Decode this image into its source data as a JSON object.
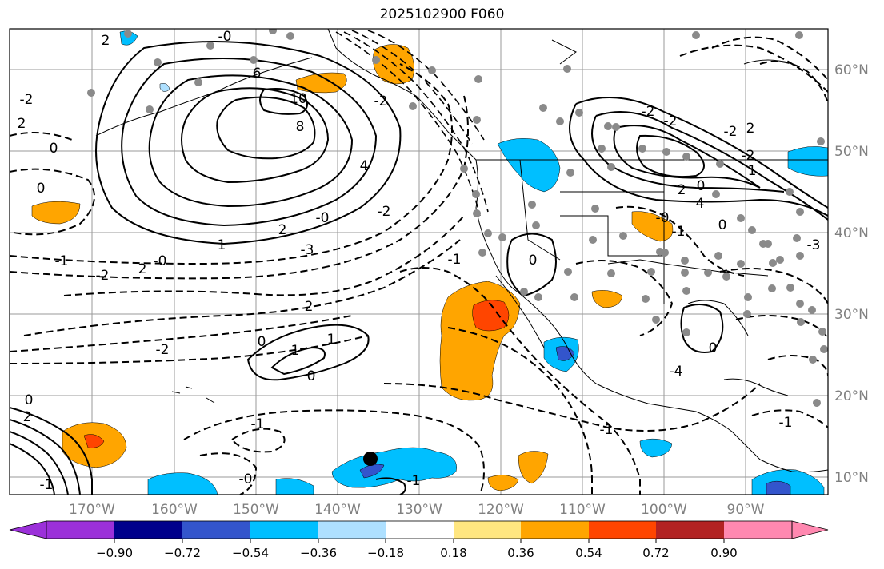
{
  "title": "2025102900 F060",
  "map": {
    "type": "weather-map",
    "lon_labels": [
      "170°W",
      "160°W",
      "150°W",
      "140°W",
      "130°W",
      "120°W",
      "110°W",
      "100°W",
      "90°W"
    ],
    "lat_labels": [
      "60°N",
      "50°N",
      "40°N",
      "30°N",
      "20°N",
      "10°N"
    ],
    "contour_labels": [
      "-0",
      "2",
      "6",
      "10",
      "8",
      "0",
      "4",
      "2",
      "-2",
      "0",
      "2",
      "-1",
      "-2",
      "2",
      "-3",
      "1",
      "-1",
      "-2",
      "1",
      "0",
      "0",
      "-1",
      "-1",
      "-0",
      "2",
      "0",
      "-0",
      "2",
      "-1",
      "1",
      "0",
      "-1",
      "-2",
      "2",
      "-2",
      "1",
      "0",
      "2",
      "0",
      "4",
      "-3",
      "-0",
      "-2",
      "-1",
      "0",
      "-2",
      "-0",
      "-1",
      "-2",
      "-2",
      "-4"
    ],
    "marker": "storm-center-dot"
  },
  "colorbar": {
    "ticks": [
      "−0.90",
      "−0.72",
      "−0.54",
      "−0.36",
      "−0.18",
      "0.18",
      "0.36",
      "0.54",
      "0.72",
      "0.90"
    ],
    "colors": [
      "#9b30d9",
      "#00008b",
      "#3355cc",
      "#00bfff",
      "#aee0ff",
      "#ffffff",
      "#ffe680",
      "#ffa500",
      "#ff4500",
      "#b22222",
      "#ff88b0"
    ]
  }
}
